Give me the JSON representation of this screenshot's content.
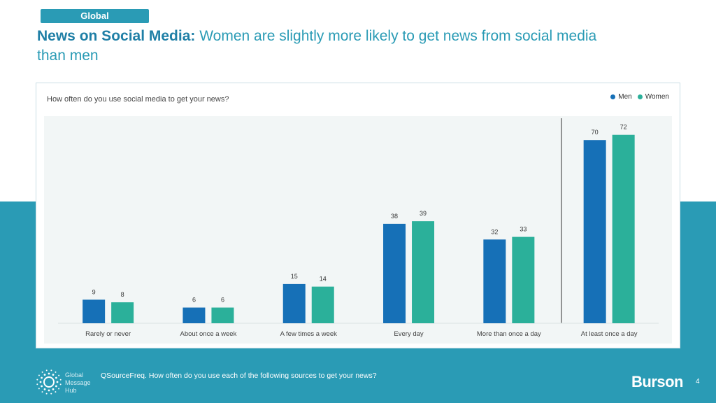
{
  "header": {
    "tag": "Global",
    "title_bold": "News on Social Media:",
    "title_rest": " Women are slightly more likely to get news from social media than men"
  },
  "chart_data": {
    "type": "bar",
    "title": "How often do you use social media to get your news?",
    "categories": [
      "Rarely or never",
      "About once a week",
      "A few times a week",
      "Every day",
      "More than once a day",
      "At least once a day"
    ],
    "series": [
      {
        "name": "Men",
        "values": [
          9,
          6,
          15,
          38,
          32,
          70
        ],
        "color": "#1670b7"
      },
      {
        "name": "Women",
        "values": [
          8,
          6,
          14,
          39,
          33,
          72
        ],
        "color": "#2bb09a"
      }
    ],
    "ylim": [
      0,
      80
    ],
    "grid": false,
    "legend": "top-right",
    "data_labels": true
  },
  "footer": {
    "logo_lines": [
      "Global",
      "Message",
      "Hub"
    ],
    "footnote": "QSourceFreq. How often do you use each of the following sources to get your news?",
    "brand": "Burson",
    "page": "4"
  },
  "colors": {
    "accent": "#2a9bb5",
    "title_dark": "#1f7fa6",
    "plot_bg": "#f2f6f6"
  }
}
